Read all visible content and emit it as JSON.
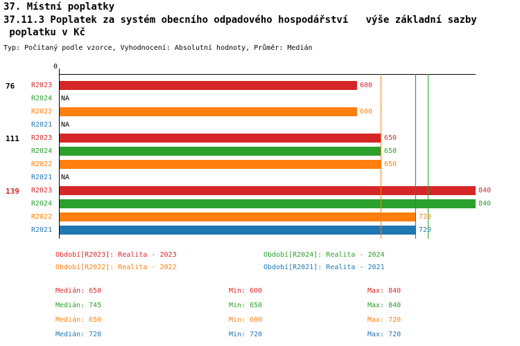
{
  "header": {
    "title_line1": "37. Místní poplatky",
    "title_line2": "37.11.3 Poplatek za systém obecního odpadového hospodářství   výše základní sazby",
    "title_line3": " poplatku v Kč",
    "subtitle": "Typ: Počítaný podle vzorce, Vyhodnocení: Absolutní hodnoty, Průměr: Medián"
  },
  "series_colors": {
    "R2023": "#d62728",
    "R2024": "#2ca02c",
    "R2022": "#ff7f0e",
    "R2021": "#1f77b4"
  },
  "chart_data": {
    "type": "bar",
    "orientation": "horizontal",
    "value_unit": "Kč",
    "axis": {
      "origin_label": "0",
      "max": 840
    },
    "na_label": "NA",
    "groups": [
      {
        "label": "76",
        "label_color": "#000000",
        "bars": [
          {
            "series": "R2023",
            "value": 600
          },
          {
            "series": "R2024",
            "value": null
          },
          {
            "series": "R2022",
            "value": 600
          },
          {
            "series": "R2021",
            "value": null
          }
        ]
      },
      {
        "label": "111",
        "label_color": "#000000",
        "bars": [
          {
            "series": "R2023",
            "value": 650
          },
          {
            "series": "R2024",
            "value": 650
          },
          {
            "series": "R2022",
            "value": 650
          },
          {
            "series": "R2021",
            "value": null
          }
        ]
      },
      {
        "label": "139",
        "label_color": "#d62728",
        "bars": [
          {
            "series": "R2023",
            "value": 840
          },
          {
            "series": "R2024",
            "value": 840
          },
          {
            "series": "R2022",
            "value": 720
          },
          {
            "series": "R2021",
            "value": 720
          }
        ]
      }
    ],
    "median_lines": [
      {
        "series": "R2023",
        "value": 650
      },
      {
        "series": "R2024",
        "value": 745
      },
      {
        "series": "R2022",
        "value": 650
      },
      {
        "series": "R2021",
        "value": 720
      }
    ]
  },
  "legend": [
    {
      "series": "R2023",
      "label": "Období[R2023]: Realita - 2023"
    },
    {
      "series": "R2024",
      "label": "Období[R2024]: Realita - 2024"
    },
    {
      "series": "R2022",
      "label": "Období[R2022]: Realita - 2022"
    },
    {
      "series": "R2021",
      "label": "Období[R2021]: Realita - 2021"
    }
  ],
  "stats": [
    {
      "series": "R2023",
      "median": "Medián: 650",
      "min": "Min: 600",
      "max": "Max: 840"
    },
    {
      "series": "R2024",
      "median": "Medián: 745",
      "min": "Min: 650",
      "max": "Max: 840"
    },
    {
      "series": "R2022",
      "median": "Medián: 650",
      "min": "Min: 600",
      "max": "Max: 720"
    },
    {
      "series": "R2021",
      "median": "Medián: 720",
      "min": "Min: 720",
      "max": "Max: 720"
    }
  ]
}
